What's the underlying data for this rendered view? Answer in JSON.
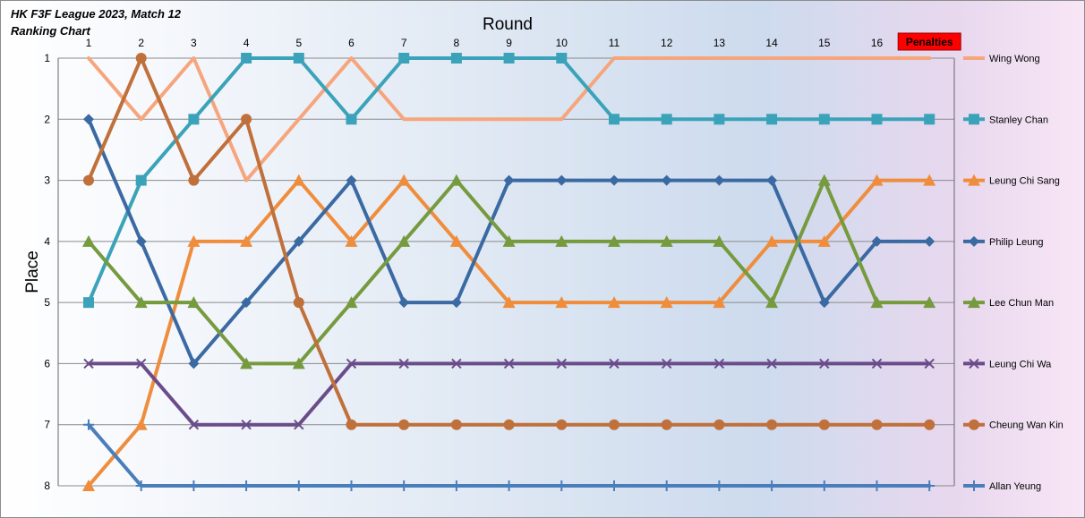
{
  "chart_data": {
    "type": "line",
    "title": "HK F3F League 2023, Match 12",
    "subtitle": "Ranking Chart",
    "xlabel": "Round",
    "ylabel": "Place",
    "categories": [
      "1",
      "2",
      "3",
      "4",
      "5",
      "6",
      "7",
      "8",
      "9",
      "10",
      "11",
      "12",
      "13",
      "14",
      "15",
      "16",
      "Penalties"
    ],
    "y_ticks": [
      "1",
      "2",
      "3",
      "4",
      "5",
      "6",
      "7",
      "8"
    ],
    "ylim": [
      1,
      8
    ],
    "y_inverted": true,
    "grid": true,
    "legend_position": "right",
    "highlight_label": "Penalties",
    "highlight_color": "#ff0000",
    "series": [
      {
        "name": "Wing Wong",
        "color": "#f6a57c",
        "marker": "none",
        "values": [
          1,
          2,
          1,
          3,
          2,
          1,
          2,
          2,
          2,
          2,
          1,
          1,
          1,
          1,
          1,
          1,
          1
        ]
      },
      {
        "name": "Stanley Chan",
        "color": "#3ba3b9",
        "marker": "square",
        "values": [
          5,
          3,
          2,
          1,
          1,
          2,
          1,
          1,
          1,
          1,
          2,
          2,
          2,
          2,
          2,
          2,
          2
        ]
      },
      {
        "name": "Leung Chi Sang",
        "color": "#ef8d3c",
        "marker": "triangle",
        "values": [
          8,
          7,
          4,
          4,
          3,
          4,
          3,
          4,
          5,
          5,
          5,
          5,
          5,
          4,
          4,
          3,
          3
        ]
      },
      {
        "name": "Philip Leung",
        "color": "#3b6aa3",
        "marker": "diamond",
        "values": [
          2,
          4,
          6,
          5,
          4,
          3,
          5,
          5,
          3,
          3,
          3,
          3,
          3,
          3,
          5,
          4,
          4
        ]
      },
      {
        "name": "Lee Chun Man",
        "color": "#769a3e",
        "marker": "triangle",
        "values": [
          4,
          5,
          5,
          6,
          6,
          5,
          4,
          3,
          4,
          4,
          4,
          4,
          4,
          5,
          3,
          5,
          5
        ]
      },
      {
        "name": "Leung Chi Wa",
        "color": "#6b4c8a",
        "marker": "x",
        "values": [
          6,
          6,
          7,
          7,
          7,
          6,
          6,
          6,
          6,
          6,
          6,
          6,
          6,
          6,
          6,
          6,
          6
        ]
      },
      {
        "name": "Cheung Wan Kin",
        "color": "#c0703a",
        "marker": "circle",
        "values": [
          3,
          1,
          3,
          2,
          5,
          7,
          7,
          7,
          7,
          7,
          7,
          7,
          7,
          7,
          7,
          7,
          7
        ]
      },
      {
        "name": "Allan Yeung",
        "color": "#4a7ebb",
        "marker": "plus",
        "values": [
          7,
          8,
          8,
          8,
          8,
          8,
          8,
          8,
          8,
          8,
          8,
          8,
          8,
          8,
          8,
          8,
          8
        ]
      }
    ]
  }
}
